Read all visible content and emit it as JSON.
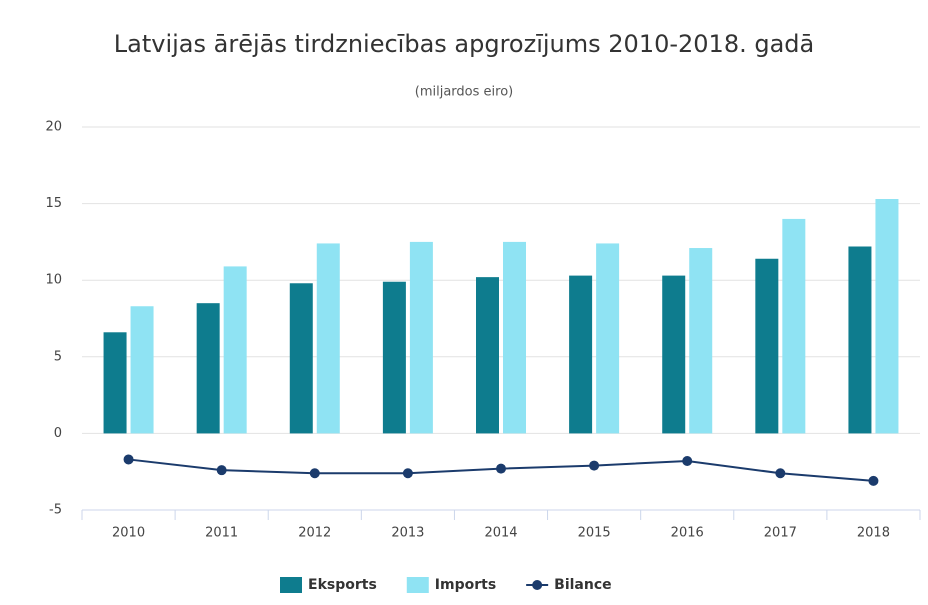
{
  "chart_data": {
    "type": "bar",
    "title": "Latvijas ārējās tirdzniecības apgrozījums 2010-2018. gadā",
    "subtitle": "(miljardos eiro)",
    "categories": [
      "2010",
      "2011",
      "2012",
      "2013",
      "2014",
      "2015",
      "2016",
      "2017",
      "2018"
    ],
    "series": [
      {
        "name": "Eksports",
        "color": "#0e7c8e",
        "type": "bar",
        "values": [
          6.6,
          8.5,
          9.8,
          9.9,
          10.2,
          10.3,
          10.3,
          11.4,
          12.2
        ]
      },
      {
        "name": "Imports",
        "color": "#8fe3f3",
        "type": "bar",
        "values": [
          8.3,
          10.9,
          12.4,
          12.5,
          12.5,
          12.4,
          12.1,
          14.0,
          15.3
        ]
      },
      {
        "name": "Bilance",
        "color": "#1b3b6c",
        "type": "line",
        "values": [
          -1.7,
          -2.4,
          -2.6,
          -2.6,
          -2.3,
          -2.1,
          -1.8,
          -2.6,
          -3.1
        ]
      }
    ],
    "ylim": [
      -5,
      20
    ],
    "yticks": [
      -5,
      0,
      5,
      10,
      15,
      20
    ],
    "grid": true,
    "legend": "bottom"
  }
}
